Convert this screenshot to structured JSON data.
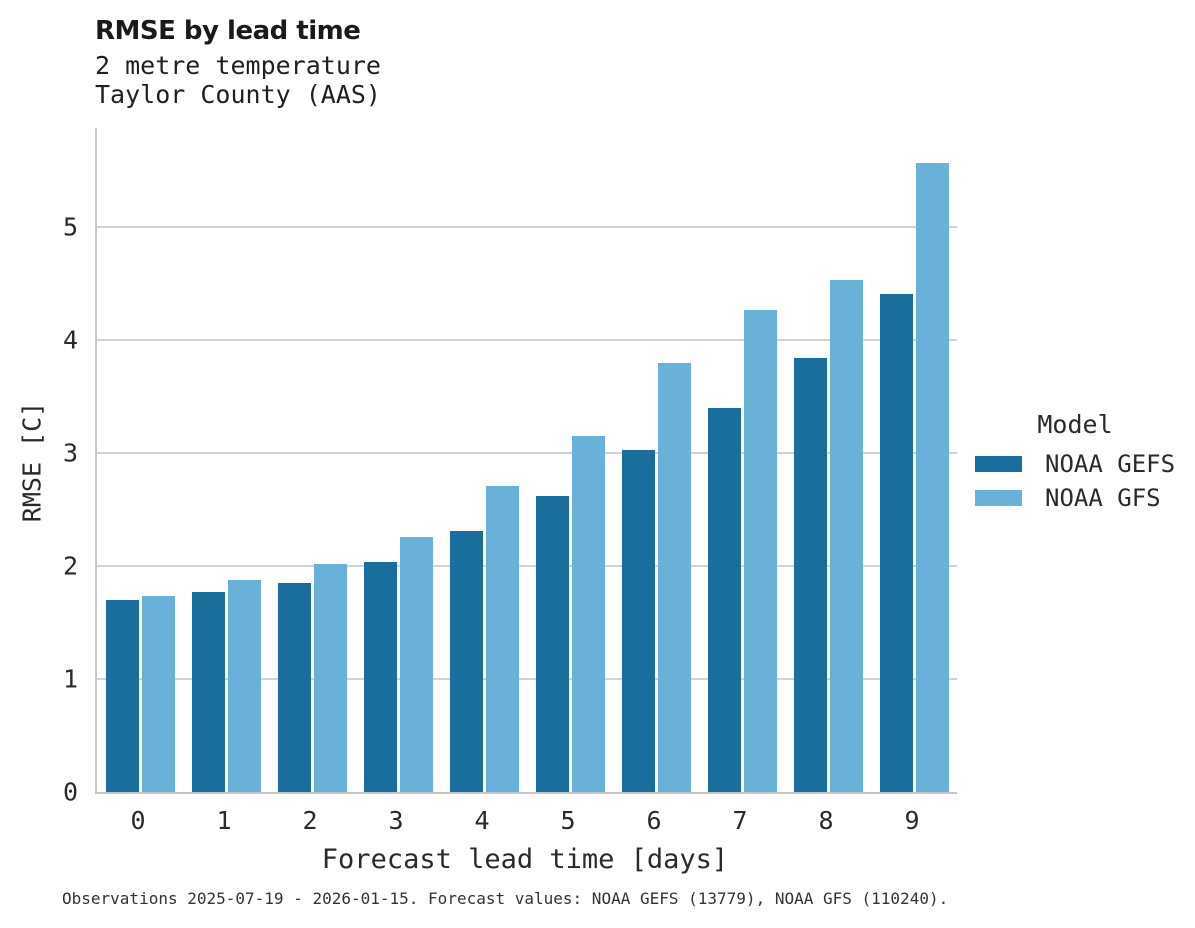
{
  "chart_data": {
    "type": "bar",
    "title": "RMSE by lead time",
    "subtitle": [
      "2 metre temperature",
      "Taylor County (AAS)"
    ],
    "xlabel": "Forecast lead time [days]",
    "ylabel": "RMSE [C]",
    "categories": [
      0,
      1,
      2,
      3,
      4,
      5,
      6,
      7,
      8,
      9
    ],
    "series": [
      {
        "name": "NOAA GEFS",
        "color": "#1a6e9e",
        "values": [
          1.7,
          1.77,
          1.85,
          2.04,
          2.31,
          2.62,
          3.03,
          3.4,
          3.84,
          4.41
        ]
      },
      {
        "name": "NOAA GFS",
        "color": "#69b1d9",
        "values": [
          1.74,
          1.88,
          2.02,
          2.26,
          2.71,
          3.15,
          3.8,
          4.27,
          4.53,
          5.57
        ]
      }
    ],
    "ylim": [
      0,
      5.88
    ],
    "yticks": [
      0,
      1,
      2,
      3,
      4,
      5
    ],
    "grid": "horizontal",
    "legend_title": "Model",
    "legend_position": "right",
    "caption": "Observations 2025-07-19 - 2026-01-15. Forecast values: NOAA GEFS (13779), NOAA GFS (110240).",
    "colors": {
      "gridline": "#d2d2d2",
      "spine": "#c6c6c6",
      "text": "#2a2a2a",
      "title": "#1a1a1a"
    }
  }
}
